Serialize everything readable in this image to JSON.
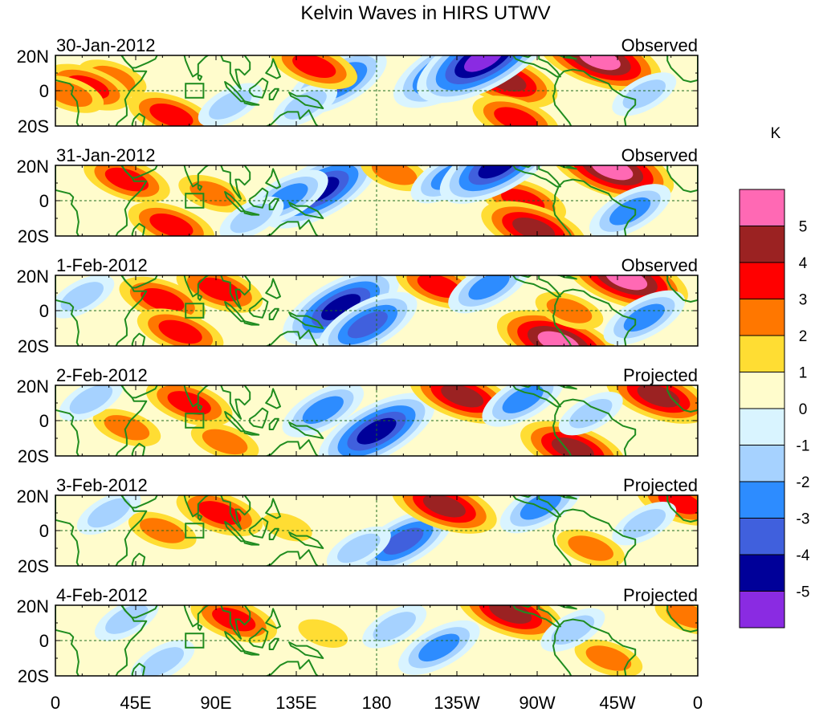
{
  "title": "Kelvin Waves in HIRS UTWV",
  "colorbar": {
    "unit": "K",
    "labels": [
      "5",
      "4",
      "3",
      "2",
      "1",
      "0",
      "-1",
      "-2",
      "-3",
      "-4",
      "-5"
    ],
    "colors": [
      "#ff69b4",
      "#9b2222",
      "#ff0000",
      "#ff7700",
      "#ffdd33",
      "#fffccc",
      "#d9f4ff",
      "#a6d2ff",
      "#2d8cff",
      "#4060dd",
      "#000099",
      "#8a2be2"
    ]
  },
  "land_color": "#1f8c1f",
  "x_ticks": [
    "0",
    "45E",
    "90E",
    "135E",
    "180",
    "135W",
    "90W",
    "45W",
    "0"
  ],
  "y_ticks": [
    "20N",
    "0",
    "20S"
  ],
  "panels": [
    {
      "date": "30-Jan-2012",
      "status": "Observed"
    },
    {
      "date": "31-Jan-2012",
      "status": "Observed"
    },
    {
      "date": "1-Feb-2012",
      "status": "Observed"
    },
    {
      "date": "2-Feb-2012",
      "status": "Projected"
    },
    {
      "date": "3-Feb-2012",
      "status": "Projected"
    },
    {
      "date": "4-Feb-2012",
      "status": "Projected"
    }
  ],
  "anomaly_features": [
    [
      {
        "lon": 32,
        "lat": 7,
        "value": 2
      },
      {
        "lon": 18,
        "lat": 2,
        "value": 3
      },
      {
        "lon": 65,
        "lat": -14,
        "value": 3
      },
      {
        "lon": 8,
        "lat": -2,
        "value": 2
      },
      {
        "lon": 158,
        "lat": 5,
        "value": -4
      },
      {
        "lon": 140,
        "lat": -8,
        "value": -2
      },
      {
        "lon": 145,
        "lat": 14,
        "value": 3
      },
      {
        "lon": 222,
        "lat": 12,
        "value": -5
      },
      {
        "lon": 252,
        "lat": 6,
        "value": 4
      },
      {
        "lon": 258,
        "lat": -16,
        "value": 3
      },
      {
        "lon": 240,
        "lat": 18,
        "value": -6
      },
      {
        "lon": 305,
        "lat": 18,
        "value": 5
      },
      {
        "lon": 98,
        "lat": -8,
        "value": -2
      },
      {
        "lon": 330,
        "lat": -2,
        "value": -2
      }
    ],
    [
      {
        "lon": 40,
        "lat": 12,
        "value": 3
      },
      {
        "lon": 88,
        "lat": 4,
        "value": 2
      },
      {
        "lon": 65,
        "lat": -14,
        "value": 3
      },
      {
        "lon": 148,
        "lat": 6,
        "value": -5
      },
      {
        "lon": 130,
        "lat": 2,
        "value": -3
      },
      {
        "lon": 190,
        "lat": 16,
        "value": 2
      },
      {
        "lon": 222,
        "lat": 14,
        "value": -3
      },
      {
        "lon": 262,
        "lat": 0,
        "value": 3
      },
      {
        "lon": 268,
        "lat": -16,
        "value": 4
      },
      {
        "lon": 312,
        "lat": 18,
        "value": 5
      },
      {
        "lon": 248,
        "lat": 20,
        "value": -5
      },
      {
        "lon": 110,
        "lat": -10,
        "value": -2
      },
      {
        "lon": 322,
        "lat": -6,
        "value": -3
      }
    ],
    [
      {
        "lon": 60,
        "lat": 6,
        "value": 3
      },
      {
        "lon": 92,
        "lat": 12,
        "value": 3
      },
      {
        "lon": 70,
        "lat": -12,
        "value": 3
      },
      {
        "lon": 160,
        "lat": 2,
        "value": -5
      },
      {
        "lon": 175,
        "lat": -8,
        "value": -4
      },
      {
        "lon": 215,
        "lat": 14,
        "value": 3
      },
      {
        "lon": 243,
        "lat": 14,
        "value": -3
      },
      {
        "lon": 282,
        "lat": -18,
        "value": 5
      },
      {
        "lon": 288,
        "lat": 0,
        "value": 2
      },
      {
        "lon": 320,
        "lat": 18,
        "value": 5
      },
      {
        "lon": 15,
        "lat": 8,
        "value": -2
      },
      {
        "lon": 330,
        "lat": -4,
        "value": -3
      }
    ],
    [
      {
        "lon": 75,
        "lat": 10,
        "value": 3
      },
      {
        "lon": 40,
        "lat": -4,
        "value": 2
      },
      {
        "lon": 95,
        "lat": -12,
        "value": 2
      },
      {
        "lon": 180,
        "lat": -6,
        "value": -5
      },
      {
        "lon": 150,
        "lat": 6,
        "value": -3
      },
      {
        "lon": 228,
        "lat": 14,
        "value": 4
      },
      {
        "lon": 262,
        "lat": 12,
        "value": -3
      },
      {
        "lon": 290,
        "lat": -16,
        "value": 4
      },
      {
        "lon": 338,
        "lat": 14,
        "value": 4
      },
      {
        "lon": 300,
        "lat": 4,
        "value": -2
      },
      {
        "lon": 20,
        "lat": 12,
        "value": -2
      }
    ],
    [
      {
        "lon": 92,
        "lat": 10,
        "value": 3
      },
      {
        "lon": 60,
        "lat": 0,
        "value": 2
      },
      {
        "lon": 195,
        "lat": -6,
        "value": -4
      },
      {
        "lon": 170,
        "lat": -10,
        "value": -2
      },
      {
        "lon": 218,
        "lat": 14,
        "value": 4
      },
      {
        "lon": 272,
        "lat": 14,
        "value": -3
      },
      {
        "lon": 300,
        "lat": -10,
        "value": 2
      },
      {
        "lon": 350,
        "lat": 16,
        "value": 3
      },
      {
        "lon": 130,
        "lat": 2,
        "value": 1
      },
      {
        "lon": 30,
        "lat": 10,
        "value": -2
      },
      {
        "lon": 330,
        "lat": 4,
        "value": -2
      }
    ],
    [
      {
        "lon": 100,
        "lat": 12,
        "value": 3
      },
      {
        "lon": 150,
        "lat": 4,
        "value": 1
      },
      {
        "lon": 215,
        "lat": -4,
        "value": -3
      },
      {
        "lon": 190,
        "lat": 8,
        "value": -2
      },
      {
        "lon": 255,
        "lat": 16,
        "value": 4
      },
      {
        "lon": 310,
        "lat": -10,
        "value": 2
      },
      {
        "lon": 355,
        "lat": 14,
        "value": 2
      },
      {
        "lon": 40,
        "lat": 12,
        "value": -2
      },
      {
        "lon": 60,
        "lat": -12,
        "value": -2
      },
      {
        "lon": 290,
        "lat": 6,
        "value": -2
      }
    ]
  ]
}
